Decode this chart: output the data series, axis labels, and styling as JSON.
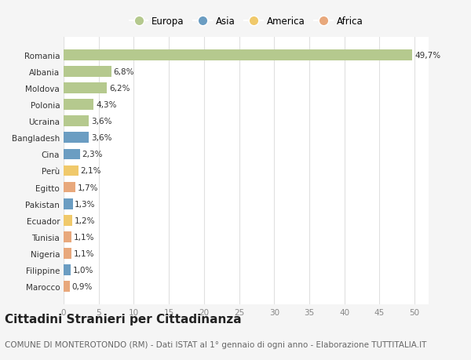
{
  "countries": [
    "Romania",
    "Albania",
    "Moldova",
    "Polonia",
    "Ucraina",
    "Bangladesh",
    "Cina",
    "Perù",
    "Egitto",
    "Pakistan",
    "Ecuador",
    "Tunisia",
    "Nigeria",
    "Filippine",
    "Marocco"
  ],
  "values": [
    49.7,
    6.8,
    6.2,
    4.3,
    3.6,
    3.6,
    2.3,
    2.1,
    1.7,
    1.3,
    1.2,
    1.1,
    1.1,
    1.0,
    0.9
  ],
  "labels": [
    "49,7%",
    "6,8%",
    "6,2%",
    "4,3%",
    "3,6%",
    "3,6%",
    "2,3%",
    "2,1%",
    "1,7%",
    "1,3%",
    "1,2%",
    "1,1%",
    "1,1%",
    "1,0%",
    "0,9%"
  ],
  "continent": [
    "Europa",
    "Europa",
    "Europa",
    "Europa",
    "Europa",
    "Asia",
    "Asia",
    "America",
    "Africa",
    "Asia",
    "America",
    "Africa",
    "Africa",
    "Asia",
    "Africa"
  ],
  "colors": {
    "Europa": "#b5c98e",
    "Asia": "#6b9dc2",
    "America": "#f0c96b",
    "Africa": "#e8a87c"
  },
  "legend_order": [
    "Europa",
    "Asia",
    "America",
    "Africa"
  ],
  "bg_color": "#f5f5f5",
  "plot_bg_color": "#ffffff",
  "grid_color": "#e0e0e0",
  "xlim": [
    0,
    52
  ],
  "xticks": [
    0,
    5,
    10,
    15,
    20,
    25,
    30,
    35,
    40,
    45,
    50
  ],
  "title": "Cittadini Stranieri per Cittadinanza",
  "subtitle": "COMUNE DI MONTEROTONDO (RM) - Dati ISTAT al 1° gennaio di ogni anno - Elaborazione TUTTITALIA.IT",
  "title_fontsize": 11,
  "subtitle_fontsize": 7.5,
  "label_fontsize": 7.5,
  "ytick_fontsize": 7.5,
  "xtick_fontsize": 7.5,
  "legend_fontsize": 8.5,
  "bar_height": 0.65
}
